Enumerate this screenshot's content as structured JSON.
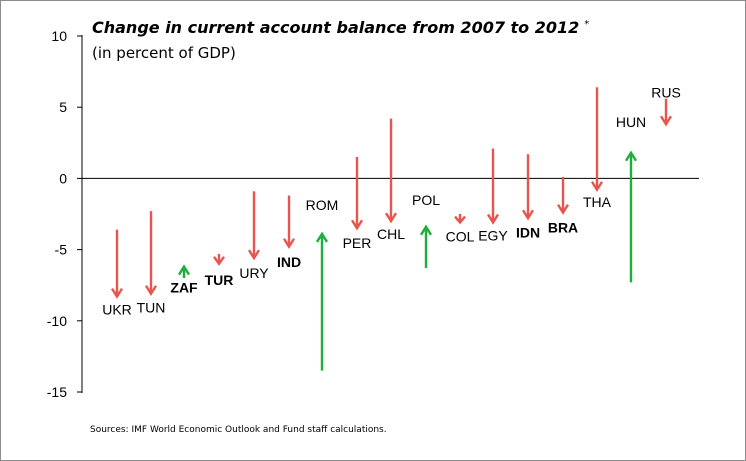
{
  "title": "Change in current account balance from 2007 to 2012",
  "title_marker": "*",
  "subtitle": "(in percent of GDP)",
  "source": "Sources: IMF World Economic Outlook and Fund staff calculations.",
  "colors": {
    "decrease": "#e8554e",
    "increase": "#1fae3c",
    "axis": "#000000"
  },
  "chart_data": {
    "type": "arrow",
    "title": "Change in current account balance from 2007 to 2012",
    "subtitle": "(in percent of GDP)",
    "ylim": [
      -15,
      10
    ],
    "yticks": [
      10,
      5,
      0,
      -5,
      -10,
      -15
    ],
    "grid": false,
    "legend": "none",
    "series": [
      {
        "code": "UKR",
        "start": -3.6,
        "end": -8.3,
        "bold": false
      },
      {
        "code": "TUN",
        "start": -2.3,
        "end": -8.1,
        "bold": false
      },
      {
        "code": "ZAF",
        "start": -7.0,
        "end": -6.2,
        "bold": true
      },
      {
        "code": "TUR",
        "start": -5.3,
        "end": -6.0,
        "bold": true
      },
      {
        "code": "URY",
        "start": -0.9,
        "end": -5.6,
        "bold": false
      },
      {
        "code": "IND",
        "start": -1.2,
        "end": -4.8,
        "bold": true
      },
      {
        "code": "ROM",
        "start": -13.5,
        "end": -3.9,
        "bold": false
      },
      {
        "code": "PER",
        "start": 1.5,
        "end": -3.5,
        "bold": false
      },
      {
        "code": "CHL",
        "start": 4.2,
        "end": -3.0,
        "bold": false
      },
      {
        "code": "POL",
        "start": -6.3,
        "end": -3.4,
        "bold": false
      },
      {
        "code": "COL",
        "start": -2.5,
        "end": -3.1,
        "bold": false
      },
      {
        "code": "EGY",
        "start": 2.1,
        "end": -3.1,
        "bold": false
      },
      {
        "code": "IDN",
        "start": 1.7,
        "end": -2.8,
        "bold": true
      },
      {
        "code": "BRA",
        "start": 0.1,
        "end": -2.4,
        "bold": true
      },
      {
        "code": "THA",
        "start": 6.4,
        "end": -0.8,
        "bold": false
      },
      {
        "code": "HUN",
        "start": -7.3,
        "end": 1.8,
        "bold": false
      },
      {
        "code": "RUS",
        "start": 5.6,
        "end": 3.8,
        "bold": false
      }
    ]
  }
}
